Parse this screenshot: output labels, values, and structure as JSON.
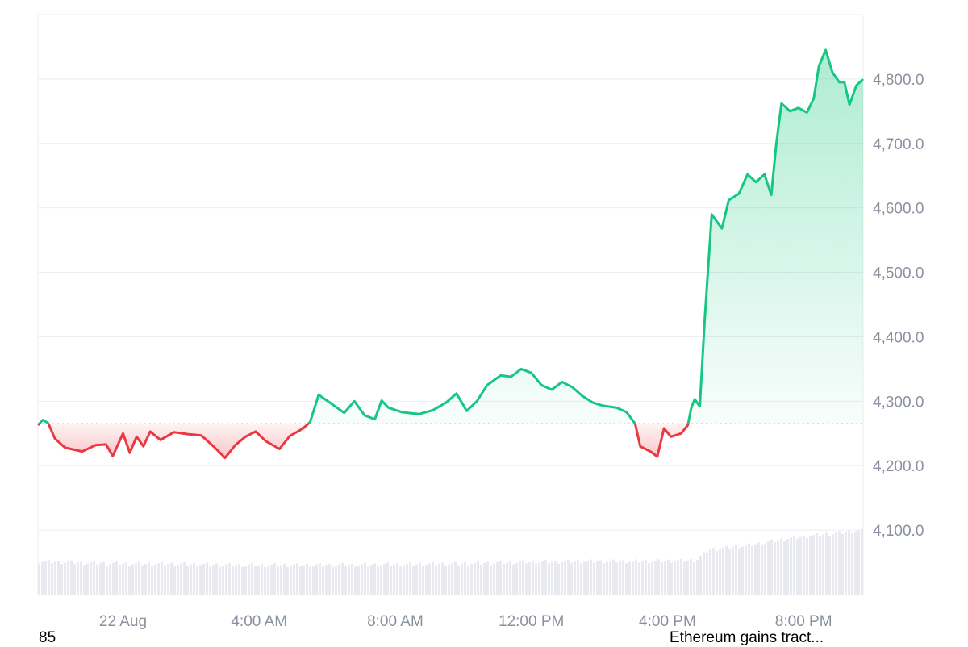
{
  "chart_data": {
    "type": "area",
    "series_name": "",
    "baseline": 4265,
    "ylim": [
      4000,
      4900
    ],
    "yticks": [
      4100,
      4200,
      4300,
      4400,
      4500,
      4600,
      4700,
      4800
    ],
    "ytick_labels": [
      "4,100.0",
      "4,200.0",
      "4,300.0",
      "4,400.0",
      "4,500.0",
      "4,600.0",
      "4,700.0",
      "4,800.0"
    ],
    "xticks": [
      {
        "t": 1.5,
        "label": "22 Aug"
      },
      {
        "t": 5.5,
        "label": "4:00 AM"
      },
      {
        "t": 9.5,
        "label": "8:00 AM"
      },
      {
        "t": 13.5,
        "label": "12:00 PM"
      },
      {
        "t": 17.5,
        "label": "4:00 PM"
      },
      {
        "t": 21.5,
        "label": "8:00 PM"
      }
    ],
    "xlim": [
      -1,
      23.25
    ],
    "price_points": [
      [
        -1,
        4263
      ],
      [
        -0.85,
        4271
      ],
      [
        -0.7,
        4266
      ],
      [
        -0.5,
        4242
      ],
      [
        -0.2,
        4228
      ],
      [
        0.3,
        4222
      ],
      [
        0.7,
        4232
      ],
      [
        1.0,
        4233
      ],
      [
        1.2,
        4215
      ],
      [
        1.5,
        4250
      ],
      [
        1.7,
        4220
      ],
      [
        1.9,
        4245
      ],
      [
        2.1,
        4230
      ],
      [
        2.3,
        4253
      ],
      [
        2.6,
        4240
      ],
      [
        3.0,
        4252
      ],
      [
        3.4,
        4249
      ],
      [
        3.8,
        4247
      ],
      [
        4.2,
        4228
      ],
      [
        4.5,
        4212
      ],
      [
        4.8,
        4232
      ],
      [
        5.1,
        4245
      ],
      [
        5.4,
        4253
      ],
      [
        5.7,
        4238
      ],
      [
        6.1,
        4226
      ],
      [
        6.4,
        4246
      ],
      [
        6.8,
        4258
      ],
      [
        7.0,
        4268
      ],
      [
        7.25,
        4310
      ],
      [
        7.6,
        4297
      ],
      [
        8.0,
        4282
      ],
      [
        8.3,
        4300
      ],
      [
        8.6,
        4278
      ],
      [
        8.9,
        4272
      ],
      [
        9.1,
        4301
      ],
      [
        9.3,
        4290
      ],
      [
        9.7,
        4283
      ],
      [
        10.2,
        4280
      ],
      [
        10.6,
        4286
      ],
      [
        11.0,
        4298
      ],
      [
        11.3,
        4312
      ],
      [
        11.6,
        4285
      ],
      [
        11.9,
        4300
      ],
      [
        12.2,
        4325
      ],
      [
        12.6,
        4340
      ],
      [
        12.9,
        4338
      ],
      [
        13.2,
        4350
      ],
      [
        13.5,
        4344
      ],
      [
        13.8,
        4325
      ],
      [
        14.1,
        4318
      ],
      [
        14.4,
        4330
      ],
      [
        14.7,
        4322
      ],
      [
        15.0,
        4308
      ],
      [
        15.3,
        4298
      ],
      [
        15.6,
        4293
      ],
      [
        16.0,
        4290
      ],
      [
        16.3,
        4283
      ],
      [
        16.55,
        4265
      ],
      [
        16.7,
        4230
      ],
      [
        17.0,
        4222
      ],
      [
        17.2,
        4214
      ],
      [
        17.4,
        4258
      ],
      [
        17.6,
        4245
      ],
      [
        17.9,
        4250
      ],
      [
        18.1,
        4263
      ],
      [
        18.2,
        4290
      ],
      [
        18.3,
        4303
      ],
      [
        18.45,
        4292
      ],
      [
        18.6,
        4430
      ],
      [
        18.8,
        4590
      ],
      [
        19.1,
        4568
      ],
      [
        19.3,
        4612
      ],
      [
        19.6,
        4622
      ],
      [
        19.85,
        4652
      ],
      [
        20.1,
        4640
      ],
      [
        20.35,
        4652
      ],
      [
        20.55,
        4620
      ],
      [
        20.7,
        4700
      ],
      [
        20.85,
        4762
      ],
      [
        21.1,
        4750
      ],
      [
        21.35,
        4755
      ],
      [
        21.6,
        4748
      ],
      [
        21.8,
        4770
      ],
      [
        21.95,
        4820
      ],
      [
        22.15,
        4845
      ],
      [
        22.35,
        4810
      ],
      [
        22.55,
        4795
      ],
      [
        22.7,
        4795
      ],
      [
        22.85,
        4760
      ],
      [
        23.05,
        4790
      ],
      [
        23.25,
        4800
      ]
    ],
    "volume_profile": [
      [
        -1,
        0.62
      ],
      [
        1,
        0.58
      ],
      [
        3,
        0.57
      ],
      [
        5,
        0.55
      ],
      [
        7,
        0.55
      ],
      [
        9,
        0.56
      ],
      [
        11,
        0.57
      ],
      [
        13,
        0.6
      ],
      [
        15,
        0.62
      ],
      [
        17,
        0.62
      ],
      [
        18.3,
        0.64
      ],
      [
        18.7,
        0.84
      ],
      [
        20,
        0.93
      ],
      [
        21,
        1.05
      ],
      [
        22,
        1.12
      ],
      [
        23.25,
        1.2
      ]
    ],
    "colors": {
      "up": "#16c784",
      "down": "#ea3943",
      "up_fill": "#16c784",
      "down_fill": "#ea3943",
      "volume": "#e8eaef",
      "grid": "#eceef1",
      "axis_text": "#8a919e"
    },
    "grid": true
  },
  "footer": {
    "left_text": "85",
    "right_text": "Ethereum gains tract..."
  }
}
